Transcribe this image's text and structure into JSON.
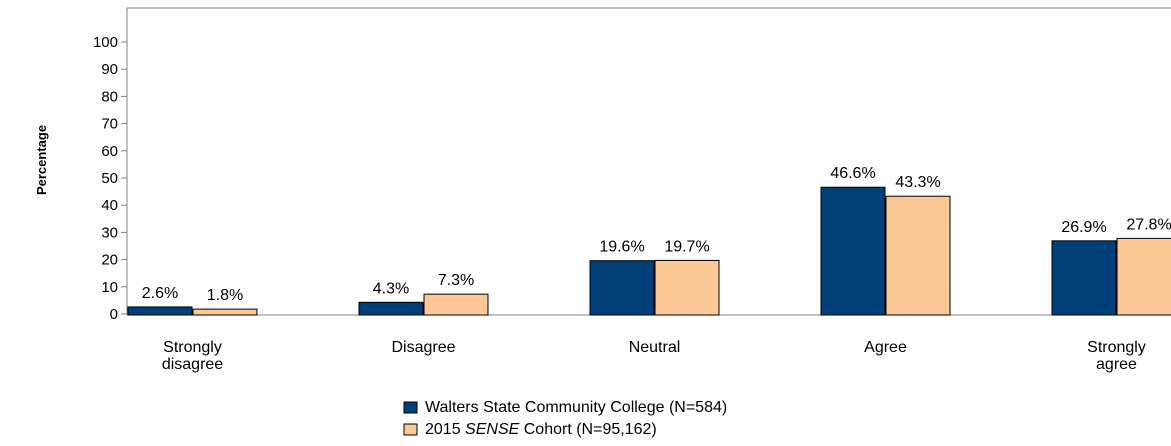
{
  "chart_data": {
    "type": "bar",
    "ylabel": "Percentage",
    "ylim": [
      0,
      100
    ],
    "yticks": [
      0,
      10,
      20,
      30,
      40,
      50,
      60,
      70,
      80,
      90,
      100
    ],
    "grid": false,
    "legend_position": "bottom-center",
    "categories": [
      [
        "Strongly",
        "disagree"
      ],
      [
        "Disagree"
      ],
      [
        "Neutral"
      ],
      [
        "Agree"
      ],
      [
        "Strongly",
        "agree"
      ]
    ],
    "series": [
      {
        "name": "Walters State Community College (N=584)",
        "color": "#003f7a",
        "values": [
          2.6,
          4.3,
          19.6,
          46.6,
          26.9
        ],
        "labels": [
          "2.6%",
          "4.3%",
          "19.6%",
          "46.6%",
          "26.9%"
        ]
      },
      {
        "name": "2015 SENSE Cohort (N=95,162)",
        "name_parts": [
          "2015 ",
          "SENSE",
          " Cohort (N=95,162)"
        ],
        "color": "#fcc996",
        "values": [
          1.8,
          7.3,
          19.7,
          43.3,
          27.8
        ],
        "labels": [
          "1.8%",
          "7.3%",
          "19.7%",
          "43.3%",
          "27.8%"
        ]
      }
    ]
  }
}
